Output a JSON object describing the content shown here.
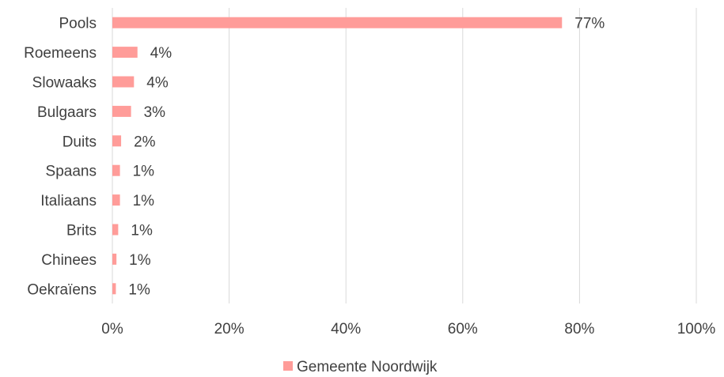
{
  "chart_data": {
    "type": "bar",
    "orientation": "horizontal",
    "categories": [
      "Pools",
      "Roemeens",
      "Slowaaks",
      "Bulgaars",
      "Duits",
      "Spaans",
      "Italiaans",
      "Brits",
      "Chinees",
      "Oekraïens"
    ],
    "series": [
      {
        "name": "Gemeente Noordwijk",
        "values": [
          77,
          4.3,
          3.7,
          3.2,
          1.5,
          1.3,
          1.3,
          1.0,
          0.7,
          0.6
        ],
        "labels": [
          "77%",
          "4%",
          "4%",
          "3%",
          "2%",
          "1%",
          "1%",
          "1%",
          "1%",
          "1%"
        ],
        "color": "#ff9c99"
      }
    ],
    "xlim": [
      0,
      100
    ],
    "xticks": [
      0,
      20,
      40,
      60,
      80,
      100
    ],
    "xtick_labels": [
      "0%",
      "20%",
      "40%",
      "60%",
      "80%",
      "100%"
    ],
    "grid": true,
    "legend_position": "bottom"
  }
}
